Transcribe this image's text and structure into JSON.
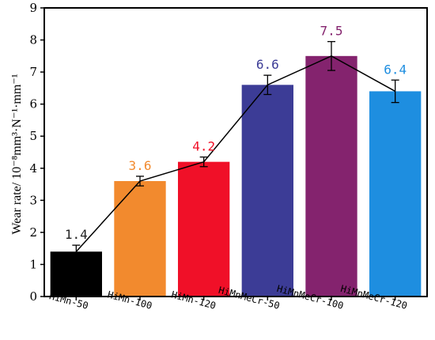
{
  "chart_data": {
    "type": "bar",
    "categories": [
      "HiMn-50",
      "HiMn-100",
      "HiMn-120",
      "HiMnMeCr-50",
      "HiMnMeCr-100",
      "HiMnMeCr-120"
    ],
    "values": [
      1.4,
      3.6,
      4.2,
      6.6,
      7.5,
      6.4
    ],
    "value_labels": [
      "1.4",
      "3.6",
      "4.2",
      "6.6",
      "7.5",
      "6.4"
    ],
    "errors": [
      0.2,
      0.15,
      0.15,
      0.3,
      0.45,
      0.35
    ],
    "bar_colors": [
      "#000000",
      "#F28A2E",
      "#F01028",
      "#3C3C96",
      "#84236E",
      "#1E8EE0"
    ],
    "label_colors": [
      "#222222",
      "#F28A2E",
      "#F01028",
      "#3C3C96",
      "#84236E",
      "#1E8EE0"
    ],
    "line_color": "#000000",
    "ylabel": "Wear rate/ 10⁻⁸mm³·N⁻¹·mm⁻¹",
    "xlabel": "",
    "title": "",
    "ylim": [
      0,
      9
    ],
    "yticks": [
      "0",
      "1",
      "2",
      "3",
      "4",
      "5",
      "6",
      "7",
      "8",
      "9"
    ],
    "grid": false,
    "connecting_line": true
  }
}
